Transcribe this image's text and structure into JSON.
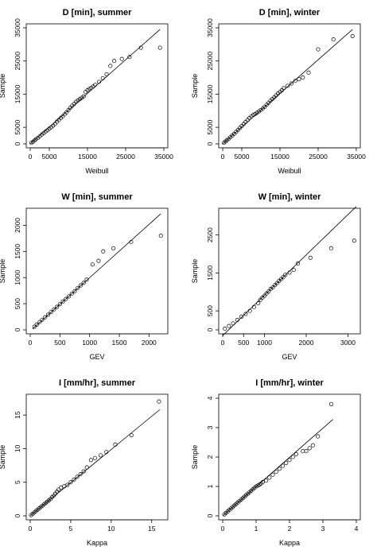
{
  "figure": {
    "ylabel": "Sample"
  },
  "chart_data": [
    {
      "type": "scatter",
      "title": "D [min], summer",
      "xlabel": "Weibull",
      "ylabel": "Sample",
      "xlim": [
        0,
        35000
      ],
      "ylim": [
        0,
        35000
      ],
      "xticks": [
        0,
        5000,
        15000,
        25000,
        35000
      ],
      "yticks": [
        0,
        5000,
        15000,
        25000,
        35000
      ],
      "reference_line": [
        [
          0,
          0
        ],
        [
          34000,
          34500
        ]
      ],
      "series": [
        {
          "points": [
            [
              300,
              300
            ],
            [
              700,
              600
            ],
            [
              1100,
              1000
            ],
            [
              1500,
              1400
            ],
            [
              2000,
              1800
            ],
            [
              2500,
              2300
            ],
            [
              3000,
              2800
            ],
            [
              3500,
              3200
            ],
            [
              4000,
              3700
            ],
            [
              4500,
              4100
            ],
            [
              5000,
              4600
            ],
            [
              5500,
              5000
            ],
            [
              6000,
              5500
            ],
            [
              6500,
              6000
            ],
            [
              7000,
              6700
            ],
            [
              7500,
              7200
            ],
            [
              8000,
              7800
            ],
            [
              8500,
              8300
            ],
            [
              9000,
              8900
            ],
            [
              9500,
              9500
            ],
            [
              10000,
              10200
            ],
            [
              10500,
              10900
            ],
            [
              11000,
              11500
            ],
            [
              11500,
              12100
            ],
            [
              12000,
              12700
            ],
            [
              12500,
              13100
            ],
            [
              13000,
              13500
            ],
            [
              13500,
              13900
            ],
            [
              14000,
              14300
            ],
            [
              14500,
              15700
            ],
            [
              15000,
              16200
            ],
            [
              15500,
              16600
            ],
            [
              16000,
              16900
            ],
            [
              16500,
              17300
            ],
            [
              17000,
              17800
            ],
            [
              18000,
              18700
            ],
            [
              19000,
              19800
            ],
            [
              20000,
              21000
            ],
            [
              21000,
              23500
            ],
            [
              22000,
              25000
            ],
            [
              24000,
              25600
            ],
            [
              26000,
              26200
            ],
            [
              29000,
              29000
            ],
            [
              34000,
              29000
            ]
          ]
        }
      ]
    },
    {
      "type": "scatter",
      "title": "D [min], winter",
      "xlabel": "Weibull",
      "ylabel": "Sample",
      "xlim": [
        0,
        35000
      ],
      "ylim": [
        0,
        35000
      ],
      "xticks": [
        0,
        5000,
        15000,
        25000,
        35000
      ],
      "yticks": [
        0,
        5000,
        15000,
        25000,
        35000
      ],
      "reference_line": [
        [
          0,
          0
        ],
        [
          34000,
          34500
        ]
      ],
      "series": [
        {
          "points": [
            [
              300,
              300
            ],
            [
              700,
              700
            ],
            [
              1100,
              1100
            ],
            [
              1500,
              1500
            ],
            [
              2000,
              2000
            ],
            [
              2500,
              2500
            ],
            [
              3000,
              3000
            ],
            [
              3500,
              3600
            ],
            [
              4000,
              4200
            ],
            [
              4500,
              4800
            ],
            [
              5000,
              5400
            ],
            [
              5500,
              6000
            ],
            [
              6000,
              6600
            ],
            [
              6500,
              7200
            ],
            [
              7000,
              7800
            ],
            [
              7500,
              8300
            ],
            [
              8000,
              8700
            ],
            [
              8500,
              9000
            ],
            [
              9000,
              9400
            ],
            [
              9500,
              9800
            ],
            [
              10000,
              10200
            ],
            [
              10500,
              10700
            ],
            [
              11000,
              11200
            ],
            [
              11500,
              11800
            ],
            [
              12000,
              12400
            ],
            [
              12500,
              13000
            ],
            [
              13000,
              13500
            ],
            [
              13500,
              14000
            ],
            [
              14000,
              14600
            ],
            [
              14500,
              15200
            ],
            [
              15000,
              15700
            ],
            [
              15500,
              16200
            ],
            [
              16000,
              16800
            ],
            [
              17000,
              17500
            ],
            [
              18000,
              18200
            ],
            [
              19000,
              19000
            ],
            [
              20000,
              19500
            ],
            [
              21000,
              20000
            ],
            [
              22500,
              21500
            ],
            [
              25000,
              28500
            ],
            [
              29000,
              31500
            ],
            [
              34000,
              32500
            ]
          ]
        }
      ]
    },
    {
      "type": "scatter",
      "title": "W [min], summer",
      "xlabel": "GEV",
      "ylabel": "Sample",
      "xlim": [
        0,
        2250
      ],
      "ylim": [
        0,
        2250
      ],
      "xticks": [
        0,
        500,
        1000,
        1500,
        2000
      ],
      "yticks": [
        0,
        500,
        1000,
        1500,
        2000
      ],
      "reference_line": [
        [
          40,
          20
        ],
        [
          2200,
          2220
        ]
      ],
      "series": [
        {
          "points": [
            [
              70,
              60
            ],
            [
              110,
              100
            ],
            [
              160,
              150
            ],
            [
              200,
              190
            ],
            [
              250,
              240
            ],
            [
              300,
              290
            ],
            [
              350,
              340
            ],
            [
              400,
              390
            ],
            [
              450,
              440
            ],
            [
              500,
              490
            ],
            [
              550,
              540
            ],
            [
              600,
              590
            ],
            [
              650,
              640
            ],
            [
              700,
              690
            ],
            [
              750,
              740
            ],
            [
              800,
              800
            ],
            [
              850,
              850
            ],
            [
              900,
              900
            ],
            [
              950,
              960
            ],
            [
              1050,
              1250
            ],
            [
              1150,
              1320
            ],
            [
              1230,
              1500
            ],
            [
              1400,
              1560
            ],
            [
              1700,
              1680
            ],
            [
              2200,
              1800
            ]
          ]
        }
      ]
    },
    {
      "type": "scatter",
      "title": "W [min], winter",
      "xlabel": "GEV",
      "ylabel": "Sample",
      "xlim": [
        0,
        3200
      ],
      "ylim": [
        0,
        3100
      ],
      "xticks": [
        0,
        500,
        1000,
        2000,
        3000
      ],
      "yticks": [
        0,
        500,
        1500,
        2500
      ],
      "reference_line": [
        [
          0,
          -150
        ],
        [
          3200,
          3250
        ]
      ],
      "series": [
        {
          "points": [
            [
              50,
              30
            ],
            [
              150,
              100
            ],
            [
              250,
              170
            ],
            [
              350,
              260
            ],
            [
              450,
              350
            ],
            [
              550,
              420
            ],
            [
              650,
              500
            ],
            [
              750,
              600
            ],
            [
              850,
              700
            ],
            [
              900,
              790
            ],
            [
              950,
              850
            ],
            [
              1000,
              900
            ],
            [
              1050,
              960
            ],
            [
              1100,
              1010
            ],
            [
              1150,
              1080
            ],
            [
              1200,
              1120
            ],
            [
              1250,
              1180
            ],
            [
              1300,
              1230
            ],
            [
              1350,
              1290
            ],
            [
              1400,
              1340
            ],
            [
              1450,
              1390
            ],
            [
              1500,
              1450
            ],
            [
              1600,
              1510
            ],
            [
              1700,
              1580
            ],
            [
              1800,
              1750
            ],
            [
              2100,
              1900
            ],
            [
              2600,
              2150
            ],
            [
              3150,
              2350
            ]
          ]
        }
      ]
    },
    {
      "type": "scatter",
      "title": "I [mm/hr], summer",
      "xlabel": "Kappa",
      "ylabel": "Sample",
      "xlim": [
        0,
        16.5
      ],
      "ylim": [
        0,
        17.5
      ],
      "xticks": [
        0,
        5,
        10,
        15
      ],
      "yticks": [
        0,
        5,
        10,
        15
      ],
      "reference_line": [
        [
          0,
          0
        ],
        [
          16,
          15.8
        ]
      ],
      "series": [
        {
          "points": [
            [
              0.1,
              0.1
            ],
            [
              0.3,
              0.3
            ],
            [
              0.5,
              0.5
            ],
            [
              0.7,
              0.7
            ],
            [
              0.9,
              0.9
            ],
            [
              1.1,
              1.1
            ],
            [
              1.3,
              1.3
            ],
            [
              1.5,
              1.5
            ],
            [
              1.7,
              1.7
            ],
            [
              1.9,
              1.9
            ],
            [
              2.1,
              2.1
            ],
            [
              2.3,
              2.3
            ],
            [
              2.5,
              2.5
            ],
            [
              2.7,
              2.8
            ],
            [
              2.9,
              3.0
            ],
            [
              3.1,
              3.3
            ],
            [
              3.3,
              3.6
            ],
            [
              3.5,
              3.9
            ],
            [
              3.8,
              4.2
            ],
            [
              4.2,
              4.4
            ],
            [
              4.6,
              4.6
            ],
            [
              5.0,
              5.0
            ],
            [
              5.4,
              5.4
            ],
            [
              5.8,
              5.8
            ],
            [
              6.2,
              6.2
            ],
            [
              6.6,
              6.6
            ],
            [
              7.0,
              7.2
            ],
            [
              7.5,
              8.3
            ],
            [
              8.0,
              8.6
            ],
            [
              8.7,
              9.0
            ],
            [
              9.4,
              9.5
            ],
            [
              10.5,
              10.6
            ],
            [
              12.5,
              12.0
            ],
            [
              15.9,
              17.0
            ]
          ]
        }
      ]
    },
    {
      "type": "scatter",
      "title": "I [mm/hr], winter",
      "xlabel": "Kappa",
      "ylabel": "Sample",
      "xlim": [
        0,
        4
      ],
      "ylim": [
        0,
        4
      ],
      "xticks": [
        0,
        1,
        2,
        3,
        4
      ],
      "yticks": [
        0,
        1,
        2,
        3,
        4
      ],
      "reference_line": [
        [
          0,
          0
        ],
        [
          3.3,
          3.28
        ]
      ],
      "series": [
        {
          "points": [
            [
              0.05,
              0.05
            ],
            [
              0.1,
              0.1
            ],
            [
              0.15,
              0.15
            ],
            [
              0.2,
              0.2
            ],
            [
              0.25,
              0.25
            ],
            [
              0.3,
              0.3
            ],
            [
              0.35,
              0.35
            ],
            [
              0.4,
              0.4
            ],
            [
              0.45,
              0.45
            ],
            [
              0.5,
              0.5
            ],
            [
              0.55,
              0.55
            ],
            [
              0.6,
              0.6
            ],
            [
              0.65,
              0.65
            ],
            [
              0.7,
              0.7
            ],
            [
              0.75,
              0.75
            ],
            [
              0.8,
              0.8
            ],
            [
              0.85,
              0.85
            ],
            [
              0.9,
              0.9
            ],
            [
              0.95,
              0.95
            ],
            [
              1.0,
              1.0
            ],
            [
              1.05,
              1.03
            ],
            [
              1.1,
              1.06
            ],
            [
              1.15,
              1.1
            ],
            [
              1.2,
              1.15
            ],
            [
              1.3,
              1.2
            ],
            [
              1.4,
              1.3
            ],
            [
              1.5,
              1.4
            ],
            [
              1.6,
              1.5
            ],
            [
              1.7,
              1.6
            ],
            [
              1.8,
              1.7
            ],
            [
              1.9,
              1.8
            ],
            [
              2.0,
              1.9
            ],
            [
              2.1,
              2.0
            ],
            [
              2.2,
              2.1
            ],
            [
              2.4,
              2.2
            ],
            [
              2.5,
              2.2
            ],
            [
              2.6,
              2.3
            ],
            [
              2.7,
              2.4
            ],
            [
              2.85,
              2.7
            ],
            [
              3.25,
              3.8
            ]
          ]
        }
      ]
    }
  ]
}
